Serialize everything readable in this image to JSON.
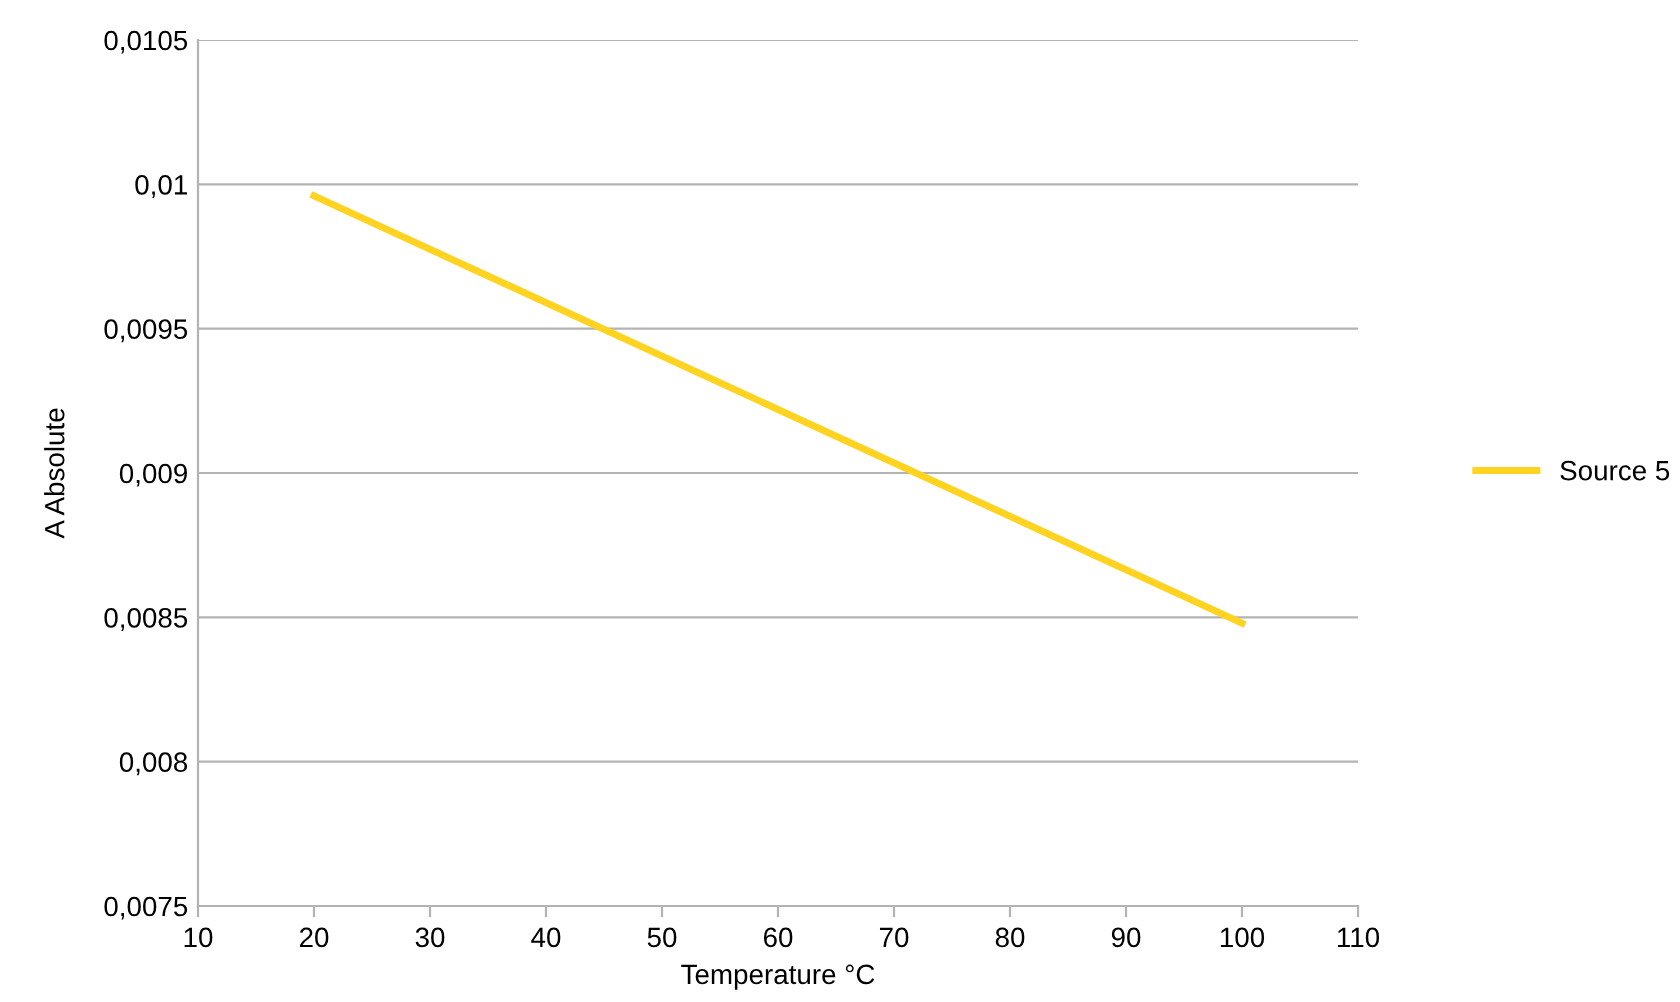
{
  "chart_data": {
    "type": "line",
    "xlabel": "Temperature °C",
    "ylabel": "A Absolute",
    "series": [
      {
        "name": "Source 5",
        "color": "#ffd320",
        "x": [
          20,
          100
        ],
        "values": [
          0.00996,
          0.00848
        ]
      }
    ],
    "xlim": [
      10,
      110
    ],
    "xticks": [
      10,
      20,
      30,
      40,
      50,
      60,
      70,
      80,
      90,
      100,
      110
    ],
    "ylim": [
      0.0075,
      0.0105
    ],
    "yticks": [
      {
        "value": 0.0075,
        "label": "0,0075"
      },
      {
        "value": 0.008,
        "label": "0,008"
      },
      {
        "value": 0.0085,
        "label": "0,0085"
      },
      {
        "value": 0.009,
        "label": "0,009"
      },
      {
        "value": 0.0095,
        "label": "0,0095"
      },
      {
        "value": 0.01,
        "label": "0,01"
      },
      {
        "value": 0.0105,
        "label": "0,0105"
      }
    ],
    "grid": "y",
    "legend": "right",
    "marker": "none",
    "line_style": "solid"
  }
}
